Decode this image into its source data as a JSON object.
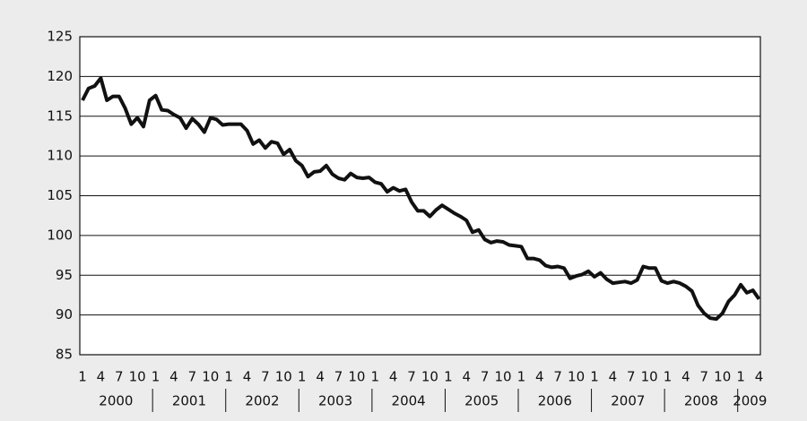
{
  "chart_data": {
    "type": "line",
    "categories": [
      "1",
      null,
      null,
      "4",
      null,
      null,
      "7",
      null,
      null,
      "10",
      null,
      null,
      "1",
      null,
      null,
      "4",
      null,
      null,
      "7",
      null,
      null,
      "10",
      null,
      null,
      "1",
      null,
      null,
      "4",
      null,
      null,
      "7",
      null,
      null,
      "10",
      null,
      null,
      "1",
      null,
      null,
      "4",
      null,
      null,
      "7",
      null,
      null,
      "10",
      null,
      null,
      "1",
      null,
      null,
      "4",
      null,
      null,
      "7",
      null,
      null,
      "10",
      null,
      null,
      "1",
      null,
      null,
      "4",
      null,
      null,
      "7",
      null,
      null,
      "10",
      null,
      null,
      "1",
      null,
      null,
      "4",
      null,
      null,
      "7",
      null,
      null,
      "10",
      null,
      null,
      "1",
      null,
      null,
      "4",
      null,
      null,
      "7",
      null,
      null,
      "10",
      null,
      null,
      "1",
      null,
      null,
      "4",
      null,
      null,
      "7",
      null,
      null,
      "10",
      null,
      null,
      "1",
      null,
      null,
      "4"
    ],
    "years": [
      "2000",
      "2001",
      "2002",
      "2003",
      "2004",
      "2005",
      "2006",
      "2007",
      "2008",
      "2009"
    ],
    "series": [
      {
        "color": "#111111",
        "values": [
          117,
          118.5,
          118.8,
          119.8,
          117,
          117.5,
          117.5,
          116,
          114,
          114.8,
          113.7,
          117,
          117.6,
          115.8,
          115.7,
          115.2,
          114.8,
          113.5,
          114.7,
          114.0,
          113.0,
          114.8,
          114.6,
          113.9,
          114.0,
          114.0,
          114.0,
          113.2,
          111.5,
          112.0,
          111.0,
          111.8,
          111.6,
          110.2,
          110.8,
          109.4,
          108.8,
          107.4,
          108.0,
          108.1,
          108.8,
          107.7,
          107.2,
          107.0,
          107.8,
          107.3,
          107.2,
          107.3,
          106.7,
          106.5,
          105.5,
          106.0,
          105.6,
          105.8,
          104.2,
          103.1,
          103.1,
          102.4,
          103.2,
          103.8,
          103.3,
          102.8,
          102.4,
          101.9,
          100.4,
          100.7,
          99.5,
          99.1,
          99.3,
          99.2,
          98.8,
          98.7,
          98.6,
          97.1,
          97.1,
          96.9,
          96.2,
          96.0,
          96.1,
          95.9,
          94.6,
          94.9,
          95.1,
          95.5,
          94.8,
          95.3,
          94.5,
          94.0,
          94.1,
          94.2,
          94.0,
          94.4,
          96.1,
          95.9,
          95.9,
          94.3,
          94.0,
          94.2,
          94.0,
          93.6,
          93.0,
          91.2,
          90.2,
          89.6,
          89.5,
          90.2,
          91.7,
          92.5,
          93.8,
          92.8,
          93.1,
          92.0
        ]
      }
    ],
    "ylim": [
      85,
      125
    ],
    "yticks": [
      85,
      90,
      95,
      100,
      105,
      110,
      115,
      120,
      125
    ],
    "grid": true
  }
}
